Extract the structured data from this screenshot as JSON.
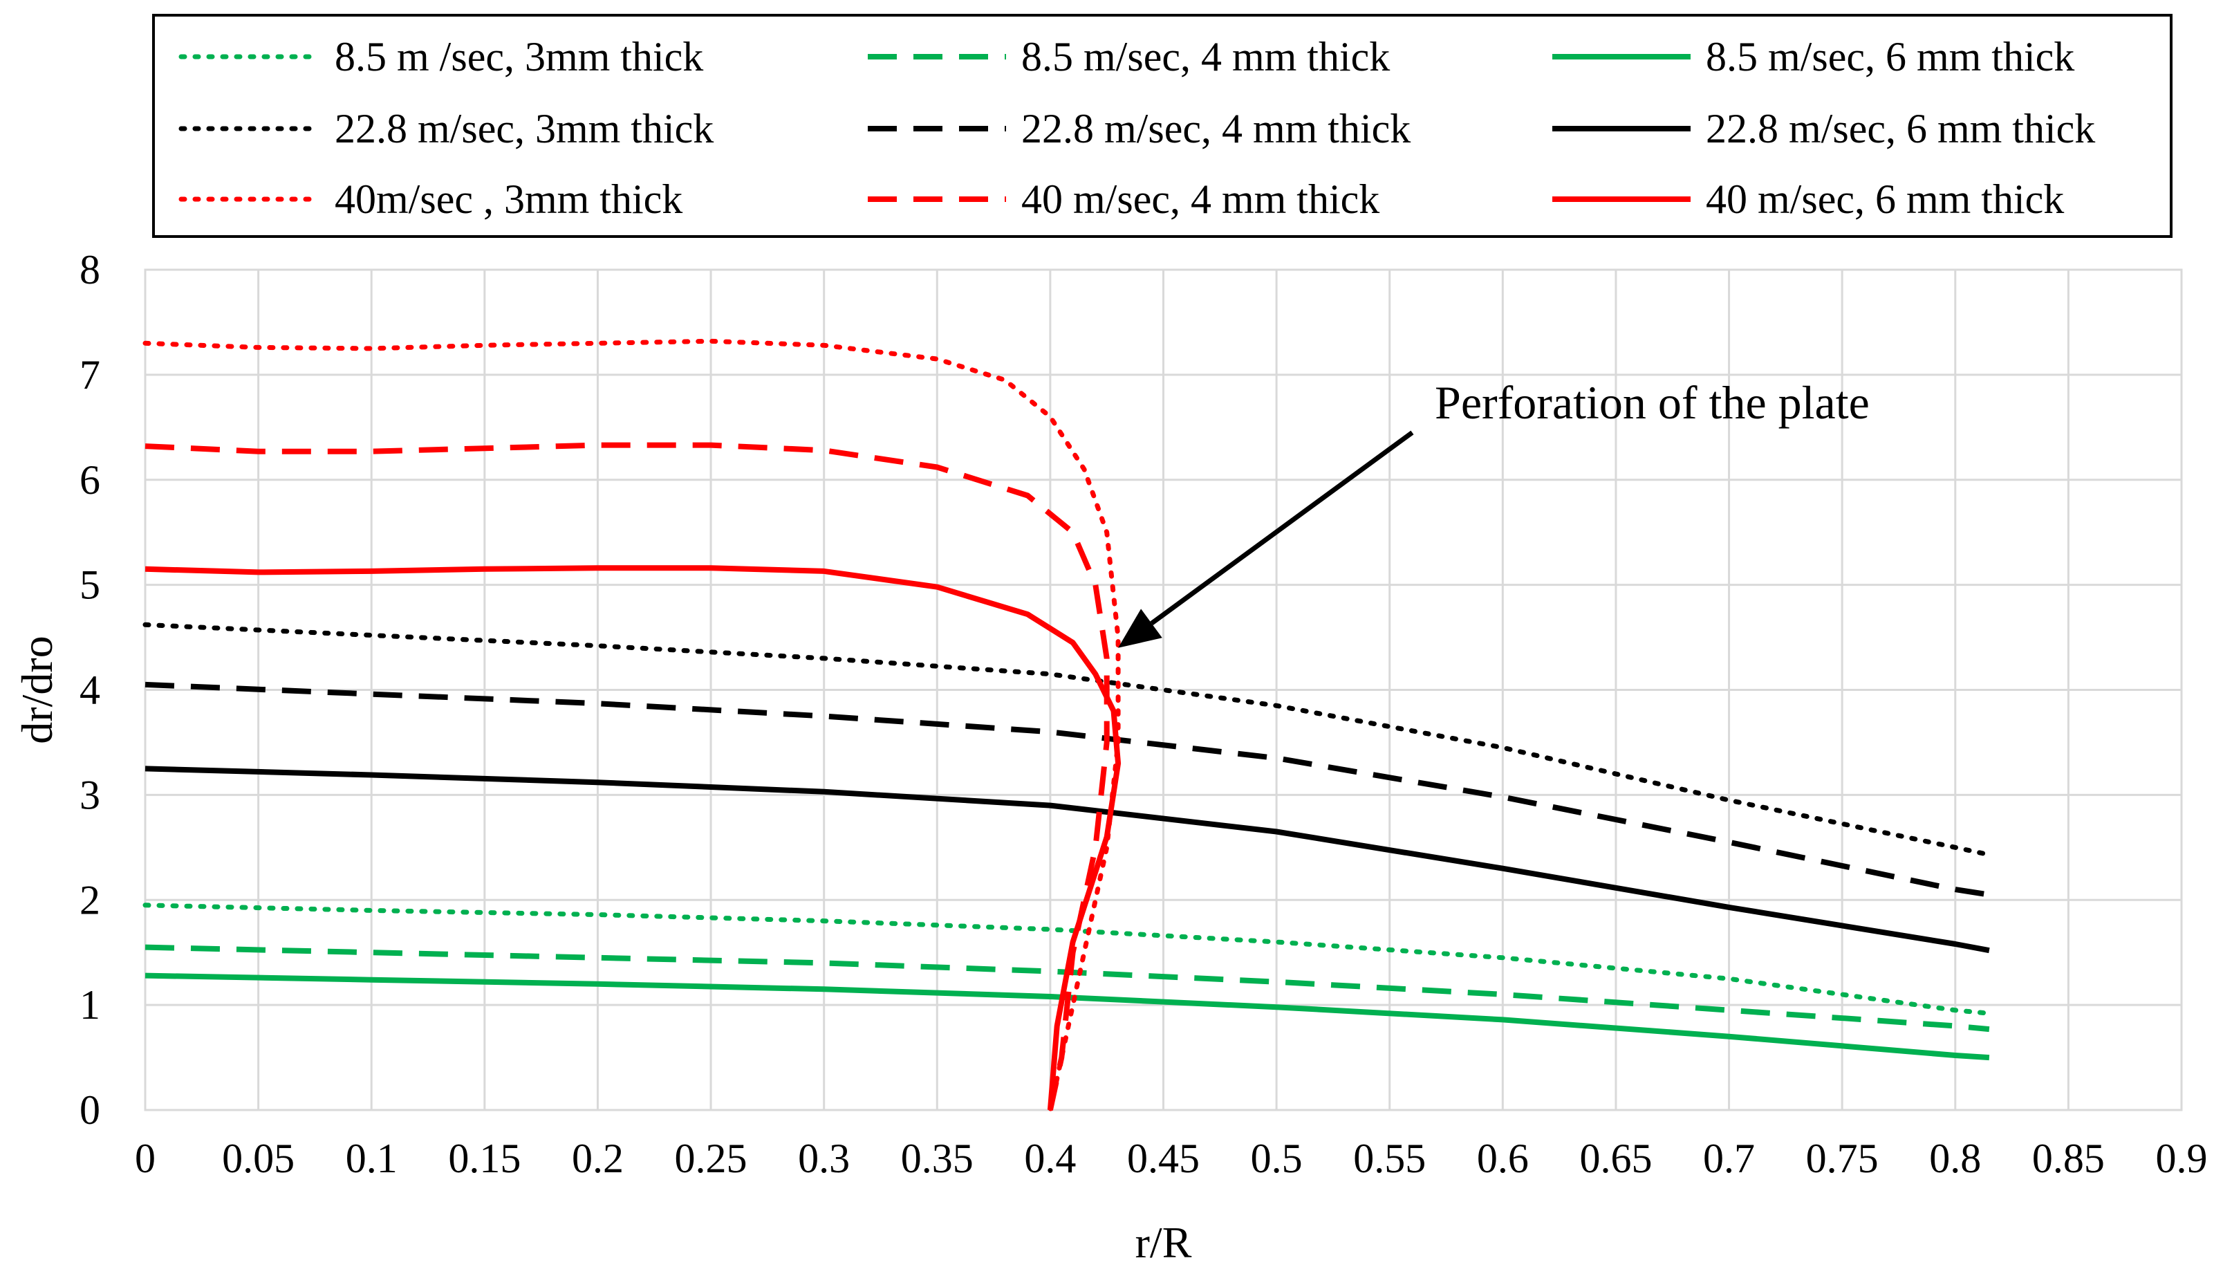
{
  "chart_data": {
    "type": "line",
    "title": "",
    "xlabel": "r/R",
    "ylabel": "dr/dro",
    "xlim": [
      0,
      0.9
    ],
    "ylim": [
      0,
      8
    ],
    "x_ticks": [
      0,
      0.05,
      0.1,
      0.15,
      0.2,
      0.25,
      0.3,
      0.35,
      0.4,
      0.45,
      0.5,
      0.55,
      0.6,
      0.65,
      0.7,
      0.75,
      0.8,
      0.85,
      0.9
    ],
    "x_tick_labels": [
      "0",
      "0.05",
      "0.1",
      "0.15",
      "0.2",
      "0.25",
      "0.3",
      "0.35",
      "0.4",
      "0.45",
      "0.5",
      "0.55",
      "0.6",
      "0.65",
      "0.7",
      "0.75",
      "0.8",
      "0.85",
      "0.9"
    ],
    "y_ticks": [
      0,
      1,
      2,
      3,
      4,
      5,
      6,
      7,
      8
    ],
    "y_tick_labels": [
      "0",
      "1",
      "2",
      "3",
      "4",
      "5",
      "6",
      "7",
      "8"
    ],
    "grid": true,
    "legend_position": "top",
    "annotation": {
      "text": "Perforation of the plate",
      "arrow_from": [
        0.56,
        6.45
      ],
      "arrow_to": [
        0.43,
        4.4
      ]
    },
    "series": [
      {
        "name": "8.5 m /sec, 3mm thick",
        "color": "#00b050",
        "dash": "dotted",
        "x": [
          0,
          0.1,
          0.2,
          0.3,
          0.4,
          0.5,
          0.6,
          0.7,
          0.8,
          0.815
        ],
        "y": [
          1.95,
          1.9,
          1.86,
          1.8,
          1.72,
          1.6,
          1.45,
          1.25,
          0.95,
          0.92
        ]
      },
      {
        "name": "8.5 m/sec, 4 mm thick",
        "color": "#00b050",
        "dash": "dashed",
        "x": [
          0,
          0.1,
          0.2,
          0.3,
          0.4,
          0.5,
          0.6,
          0.7,
          0.8,
          0.815
        ],
        "y": [
          1.55,
          1.5,
          1.45,
          1.4,
          1.32,
          1.22,
          1.1,
          0.95,
          0.8,
          0.77
        ]
      },
      {
        "name": "8.5 m/sec, 6 mm thick",
        "color": "#00b050",
        "dash": "solid",
        "x": [
          0,
          0.1,
          0.2,
          0.3,
          0.4,
          0.5,
          0.6,
          0.7,
          0.8,
          0.815
        ],
        "y": [
          1.28,
          1.24,
          1.2,
          1.15,
          1.08,
          0.98,
          0.86,
          0.7,
          0.52,
          0.5
        ]
      },
      {
        "name": "22.8 m/sec, 3mm thick",
        "color": "#000000",
        "dash": "dotted",
        "x": [
          0,
          0.1,
          0.2,
          0.3,
          0.4,
          0.5,
          0.6,
          0.7,
          0.8,
          0.815
        ],
        "y": [
          4.62,
          4.52,
          4.42,
          4.3,
          4.15,
          3.85,
          3.45,
          2.95,
          2.5,
          2.43
        ]
      },
      {
        "name": "22.8 m/sec, 4 mm thick",
        "color": "#000000",
        "dash": "dashed",
        "x": [
          0,
          0.1,
          0.2,
          0.3,
          0.4,
          0.5,
          0.6,
          0.7,
          0.8,
          0.815
        ],
        "y": [
          4.05,
          3.96,
          3.87,
          3.75,
          3.6,
          3.35,
          2.98,
          2.55,
          2.1,
          2.05
        ]
      },
      {
        "name": "22.8 m/sec, 6 mm thick",
        "color": "#000000",
        "dash": "solid",
        "x": [
          0,
          0.1,
          0.2,
          0.3,
          0.4,
          0.5,
          0.6,
          0.7,
          0.8,
          0.815
        ],
        "y": [
          3.25,
          3.19,
          3.12,
          3.03,
          2.9,
          2.65,
          2.3,
          1.93,
          1.58,
          1.52
        ]
      },
      {
        "name": "40m/sec , 3mm thick",
        "color": "#ff0000",
        "dash": "dotted",
        "x": [
          0,
          0.05,
          0.1,
          0.15,
          0.2,
          0.25,
          0.3,
          0.35,
          0.38,
          0.4,
          0.415,
          0.425,
          0.43,
          0.43,
          0.425,
          0.415,
          0.405,
          0.4
        ],
        "y": [
          7.3,
          7.26,
          7.25,
          7.28,
          7.3,
          7.32,
          7.28,
          7.15,
          6.95,
          6.6,
          6.1,
          5.5,
          4.5,
          3.5,
          2.5,
          1.5,
          0.5,
          0
        ]
      },
      {
        "name": "40 m/sec, 4 mm thick",
        "color": "#ff0000",
        "dash": "dashed",
        "x": [
          0,
          0.05,
          0.1,
          0.15,
          0.2,
          0.25,
          0.3,
          0.35,
          0.39,
          0.41,
          0.42,
          0.425,
          0.425,
          0.42,
          0.41,
          0.405,
          0.4
        ],
        "y": [
          6.32,
          6.27,
          6.27,
          6.3,
          6.33,
          6.33,
          6.28,
          6.12,
          5.85,
          5.5,
          5.0,
          4.3,
          3.5,
          2.5,
          1.5,
          0.5,
          0
        ]
      },
      {
        "name": "40 m/sec, 6 mm thick",
        "color": "#ff0000",
        "dash": "solid",
        "x": [
          0,
          0.05,
          0.1,
          0.15,
          0.2,
          0.25,
          0.3,
          0.35,
          0.39,
          0.41,
          0.42,
          0.428,
          0.43,
          0.425,
          0.41,
          0.403,
          0.4
        ],
        "y": [
          5.15,
          5.12,
          5.13,
          5.15,
          5.16,
          5.16,
          5.13,
          4.98,
          4.72,
          4.45,
          4.15,
          3.8,
          3.3,
          2.6,
          1.6,
          0.8,
          0
        ]
      }
    ]
  }
}
